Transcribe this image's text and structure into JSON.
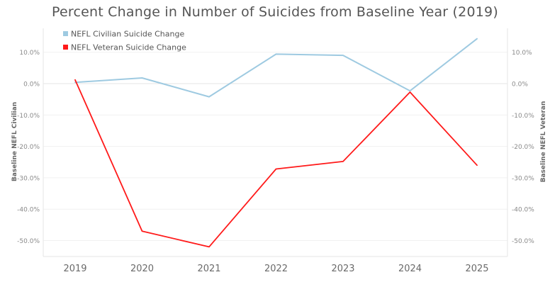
{
  "chart_data": {
    "type": "line",
    "title": "Percent Change in Number of Suicides from Baseline Year (2019)",
    "x": [
      "2019",
      "2020",
      "2021",
      "2022",
      "2023",
      "2024",
      "2025"
    ],
    "y_ticks": [
      "10.0%",
      "0.0%",
      "-10.0%",
      "-20.0%",
      "-30.0%",
      "-40.0%",
      "-50.0%"
    ],
    "y_tick_values": [
      10,
      0,
      -10,
      -20,
      -30,
      -40,
      -50
    ],
    "ylim": [
      -55,
      17
    ],
    "ylabel_left": "Baseline NEFL Civilian",
    "ylabel_right": "Baseline NEFL Veteran",
    "legend_position": "top-left",
    "grid": "horizontal",
    "series": [
      {
        "name": "NEFL Civilian Suicide Change",
        "color": "#9ecae1",
        "values": [
          0.4,
          1.8,
          -4.2,
          9.4,
          9.0,
          -2.3,
          14.3
        ]
      },
      {
        "name": "NEFL Veteran Suicide Change",
        "color": "#ff1a1a",
        "values": [
          1.2,
          -47.0,
          -52.0,
          -27.2,
          -24.8,
          -2.7,
          -26.0
        ]
      }
    ]
  }
}
